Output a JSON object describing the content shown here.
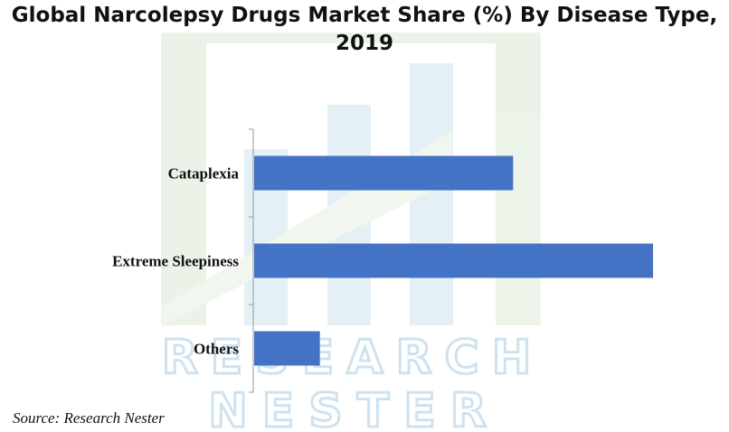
{
  "header": {
    "title": "Global Narcolepsy Drugs Market Share (%) By Disease Type, 2019"
  },
  "footer": {
    "source": "Source: Research Nester"
  },
  "watermark": {
    "line1": "RESEARCH",
    "line2": "NESTER",
    "stroke_color": "#cfe2f0",
    "fill_color": "#e8f2e6"
  },
  "colors": {
    "bar": "#4472c4",
    "axis": "#999999"
  },
  "chart_data": {
    "type": "bar",
    "orientation": "horizontal",
    "title": "Global Narcolepsy Drugs Market Share (%) By Disease Type, 2019",
    "xlabel": "",
    "ylabel": "",
    "categories": [
      "Cataplexia",
      "Extreme Sleepiness",
      "Others"
    ],
    "values": [
      39,
      60,
      10
    ],
    "xlim": [
      0,
      60
    ],
    "grid": false,
    "legend": "none"
  }
}
